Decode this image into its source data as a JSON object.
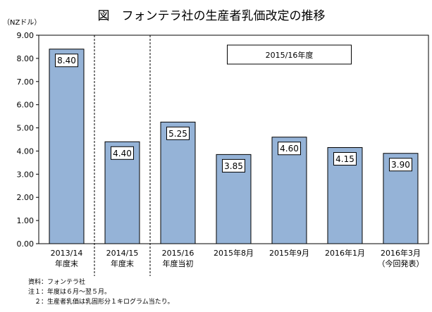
{
  "chart_data": {
    "type": "bar",
    "title": "図　フォンテラ社の生産者乳価改定の推移",
    "ylabel": "（NZドル）",
    "ylim": [
      0,
      9
    ],
    "yticks": [
      "0.00",
      "1.00",
      "2.00",
      "3.00",
      "4.00",
      "5.00",
      "6.00",
      "7.00",
      "8.00",
      "9.00"
    ],
    "categories": [
      [
        "2013/14",
        "年度末"
      ],
      [
        "2014/15",
        "年度末"
      ],
      [
        "2015/16",
        "年度当初"
      ],
      [
        "2015年8月"
      ],
      [
        "2015年9月"
      ],
      [
        "2016年1月"
      ],
      [
        "2016年3月",
        "（今回発表）"
      ]
    ],
    "values": [
      8.4,
      4.4,
      5.25,
      3.85,
      4.6,
      4.15,
      3.9
    ],
    "data_labels": [
      "8.40",
      "4.40",
      "5.25",
      "3.85",
      "4.60",
      "4.15",
      "3.90"
    ],
    "bar_color": "#95b3d7",
    "grid": false,
    "separators_after_index": [
      0,
      1
    ],
    "annotation": {
      "text": "2015/16年度",
      "spans_from_index": 2,
      "spans_to_index": 6
    }
  },
  "notes": [
    "資料：フォンテラ社",
    "注１：年度は６月～翌５月。",
    "　２：生産者乳価は乳固形分１キログラム当たり。"
  ]
}
